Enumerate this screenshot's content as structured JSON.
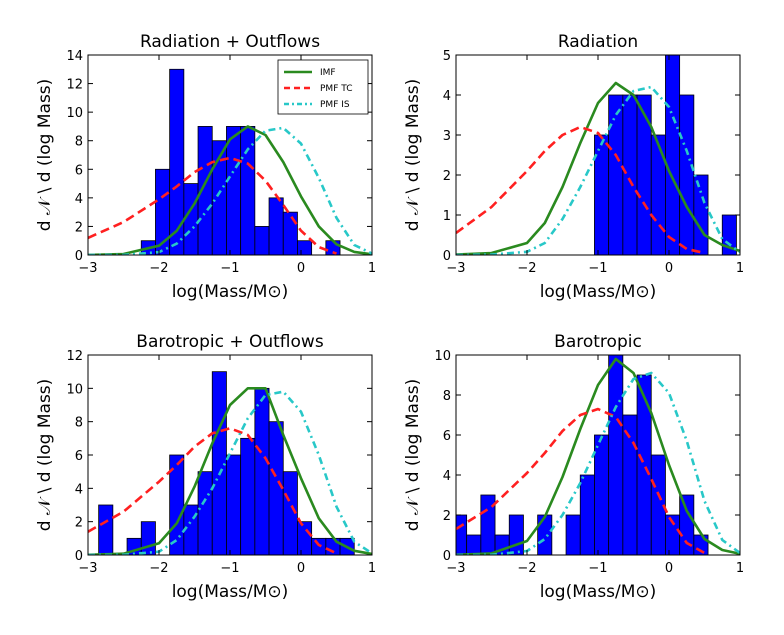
{
  "figure": {
    "xlabel": "log(Mass/M⊙)",
    "ylabel": "d 𝒩 \\ d (log Mass)"
  },
  "legend": {
    "placement": "top-right of first panel",
    "entries": [
      {
        "label": "IMF",
        "color": "#2a8a1f",
        "style": "solid"
      },
      {
        "label": "PMF TC",
        "color": "#ff2020",
        "style": "dashed"
      },
      {
        "label": "PMF IS",
        "color": "#28c8c8",
        "style": "dash-dot"
      }
    ]
  },
  "colors": {
    "bars": "#0000ff",
    "bar_edge": "#000000",
    "imf": "#2a8a1f",
    "pmf_tc": "#ff2020",
    "pmf_is": "#28c8c8"
  },
  "chart_data": [
    {
      "type": "bar",
      "title": "Radiation + Outflows",
      "xlabel": "log(Mass/M⊙)",
      "ylabel": "d 𝒩 \\ d (log Mass)",
      "xlim": [
        -3,
        1
      ],
      "ylim": [
        0,
        14
      ],
      "xticks": [
        -3,
        -2,
        -1,
        0,
        1
      ],
      "yticks": [
        0,
        2,
        4,
        6,
        8,
        10,
        12,
        14
      ],
      "grid": false,
      "histogram": {
        "bin_edges": [
          -2.25,
          -2.05,
          -1.85,
          -1.65,
          -1.45,
          -1.25,
          -1.05,
          -0.85,
          -0.65,
          -0.45,
          -0.25,
          -0.05,
          0.15,
          0.35,
          0.55
        ],
        "values": [
          1,
          6,
          13,
          5,
          9,
          8,
          9,
          9,
          2,
          4,
          3,
          1,
          0,
          1
        ]
      },
      "series": [
        {
          "name": "IMF",
          "x": [
            -3,
            -2.5,
            -2,
            -1.75,
            -1.5,
            -1.25,
            -1,
            -0.75,
            -0.5,
            -0.25,
            0,
            0.25,
            0.5,
            0.75,
            1
          ],
          "y": [
            0.01,
            0.07,
            0.65,
            1.7,
            3.6,
            6.0,
            8.1,
            9.0,
            8.4,
            6.5,
            4.1,
            2.0,
            0.75,
            0.22,
            0.05
          ]
        },
        {
          "name": "PMF TC",
          "x": [
            -3,
            -2.5,
            -2,
            -1.75,
            -1.5,
            -1.25,
            -1,
            -0.75,
            -0.5,
            -0.25,
            0,
            0.25,
            0.5
          ],
          "y": [
            1.2,
            2.3,
            3.9,
            4.8,
            5.8,
            6.5,
            6.8,
            6.4,
            5.2,
            3.5,
            1.7,
            0.55,
            0.1
          ]
        },
        {
          "name": "PMF IS",
          "x": [
            -3,
            -2.5,
            -2,
            -1.75,
            -1.5,
            -1.25,
            -1,
            -0.75,
            -0.5,
            -0.25,
            0,
            0.25,
            0.5,
            0.75,
            1
          ],
          "y": [
            0.0,
            0.01,
            0.2,
            0.8,
            2.0,
            3.6,
            5.5,
            7.4,
            8.7,
            8.9,
            7.8,
            5.4,
            2.6,
            0.7,
            0.1
          ]
        }
      ]
    },
    {
      "type": "bar",
      "title": "Radiation",
      "xlabel": "log(Mass/M⊙)",
      "ylabel": "d 𝒩 \\ d (log Mass)",
      "xlim": [
        -3,
        1
      ],
      "ylim": [
        0,
        5
      ],
      "xticks": [
        -3,
        -2,
        -1,
        0,
        1
      ],
      "yticks": [
        0,
        1,
        2,
        3,
        4,
        5
      ],
      "grid": false,
      "histogram": {
        "bin_edges": [
          -1.05,
          -0.85,
          -0.65,
          -0.45,
          -0.25,
          -0.05,
          0.15,
          0.35,
          0.55,
          0.75,
          0.95
        ],
        "values": [
          3,
          4,
          4,
          4,
          3,
          5,
          4,
          2,
          0,
          1
        ]
      },
      "series": [
        {
          "name": "IMF",
          "x": [
            -3,
            -2.5,
            -2,
            -1.75,
            -1.5,
            -1.25,
            -1,
            -0.75,
            -0.5,
            -0.25,
            0,
            0.25,
            0.5,
            0.75,
            1
          ],
          "y": [
            0.01,
            0.05,
            0.3,
            0.8,
            1.7,
            2.8,
            3.8,
            4.3,
            4.0,
            3.2,
            2.1,
            1.2,
            0.5,
            0.25,
            0.1
          ]
        },
        {
          "name": "PMF TC",
          "x": [
            -3,
            -2.5,
            -2,
            -1.75,
            -1.5,
            -1.25,
            -1,
            -0.75,
            -0.5,
            -0.25,
            0,
            0.25,
            0.5
          ],
          "y": [
            0.55,
            1.2,
            2.1,
            2.6,
            3.0,
            3.2,
            3.05,
            2.5,
            1.7,
            1.0,
            0.45,
            0.15,
            0.05
          ]
        },
        {
          "name": "PMF IS",
          "x": [
            -3,
            -2.5,
            -2,
            -1.75,
            -1.5,
            -1.25,
            -1,
            -0.75,
            -0.5,
            -0.25,
            0,
            0.25,
            0.5,
            0.75,
            1
          ],
          "y": [
            0.0,
            0.01,
            0.08,
            0.3,
            0.9,
            1.7,
            2.6,
            3.5,
            4.1,
            4.2,
            3.7,
            2.6,
            1.3,
            0.4,
            0.07
          ]
        }
      ]
    },
    {
      "type": "bar",
      "title": "Barotropic + Outflows",
      "xlabel": "log(Mass/M⊙)",
      "ylabel": "d 𝒩 \\ d (log Mass)",
      "xlim": [
        -3,
        1
      ],
      "ylim": [
        0,
        12
      ],
      "xticks": [
        -3,
        -2,
        -1,
        0,
        1
      ],
      "yticks": [
        0,
        2,
        4,
        6,
        8,
        10,
        12
      ],
      "grid": false,
      "histogram": {
        "bin_edges": [
          -2.85,
          -2.65,
          -2.45,
          -2.25,
          -2.05,
          -1.85,
          -1.65,
          -1.45,
          -1.25,
          -1.05,
          -0.85,
          -0.65,
          -0.45,
          -0.25,
          -0.05,
          0.15,
          0.35,
          0.55,
          0.75
        ],
        "values": [
          3,
          0,
          1,
          2,
          0,
          6,
          3,
          5,
          11,
          6,
          7,
          10,
          8,
          5,
          2,
          1,
          1,
          1
        ]
      },
      "series": [
        {
          "name": "IMF",
          "x": [
            -3,
            -2.5,
            -2,
            -1.75,
            -1.5,
            -1.25,
            -1,
            -0.75,
            -0.5,
            -0.25,
            0,
            0.25,
            0.5,
            0.75,
            1
          ],
          "y": [
            0.01,
            0.08,
            0.7,
            1.9,
            4.1,
            6.7,
            9.0,
            10.0,
            10.0,
            7.2,
            4.6,
            2.2,
            0.8,
            0.25,
            0.06
          ]
        },
        {
          "name": "PMF TC",
          "x": [
            -3,
            -2.5,
            -2,
            -1.75,
            -1.5,
            -1.25,
            -1,
            -0.75,
            -0.5,
            -0.25,
            0,
            0.25,
            0.5
          ],
          "y": [
            1.4,
            2.6,
            4.4,
            5.4,
            6.5,
            7.3,
            7.6,
            7.2,
            5.8,
            3.9,
            1.9,
            0.6,
            0.1
          ]
        },
        {
          "name": "PMF IS",
          "x": [
            -3,
            -2.5,
            -2,
            -1.75,
            -1.5,
            -1.25,
            -1,
            -0.75,
            -0.5,
            -0.25,
            0,
            0.25,
            0.5,
            0.75,
            1
          ],
          "y": [
            0.0,
            0.01,
            0.2,
            0.9,
            2.3,
            4.0,
            6.1,
            8.2,
            9.6,
            9.8,
            8.6,
            6.0,
            2.9,
            0.8,
            0.1
          ]
        }
      ]
    },
    {
      "type": "bar",
      "title": "Barotropic",
      "xlabel": "log(Mass/M⊙)",
      "ylabel": "d 𝒩 \\ d (log Mass)",
      "xlim": [
        -3,
        1
      ],
      "ylim": [
        0,
        10
      ],
      "xticks": [
        -3,
        -2,
        -1,
        0,
        1
      ],
      "yticks": [
        0,
        2,
        4,
        6,
        8,
        10
      ],
      "grid": false,
      "histogram": {
        "bin_edges": [
          -3.05,
          -2.85,
          -2.65,
          -2.45,
          -2.25,
          -2.05,
          -1.85,
          -1.65,
          -1.45,
          -1.25,
          -1.05,
          -0.85,
          -0.65,
          -0.45,
          -0.25,
          -0.05,
          0.15,
          0.35,
          0.55,
          0.75
        ],
        "values": [
          2,
          1,
          3,
          1,
          2,
          0,
          2,
          0,
          2,
          4,
          6,
          10,
          7,
          9,
          5,
          2,
          3,
          1,
          0
        ]
      },
      "series": [
        {
          "name": "IMF",
          "x": [
            -3,
            -2.5,
            -2,
            -1.75,
            -1.5,
            -1.25,
            -1,
            -0.75,
            -0.5,
            -0.25,
            0,
            0.25,
            0.5,
            0.75,
            1
          ],
          "y": [
            0.01,
            0.08,
            0.7,
            1.9,
            3.9,
            6.3,
            8.5,
            9.8,
            9.1,
            7.1,
            4.5,
            2.2,
            0.8,
            0.25,
            0.06
          ]
        },
        {
          "name": "PMF TC",
          "x": [
            -3,
            -2.5,
            -2,
            -1.75,
            -1.5,
            -1.25,
            -1,
            -0.75,
            -0.5,
            -0.25,
            0,
            0.25,
            0.5
          ],
          "y": [
            1.3,
            2.4,
            4.1,
            5.1,
            6.2,
            7.0,
            7.3,
            6.9,
            5.6,
            3.8,
            1.9,
            0.6,
            0.1
          ]
        },
        {
          "name": "PMF IS",
          "x": [
            -3,
            -2.5,
            -2,
            -1.75,
            -1.5,
            -1.25,
            -1,
            -0.75,
            -0.5,
            -0.25,
            0,
            0.25,
            0.5,
            0.75,
            1
          ],
          "y": [
            0.0,
            0.01,
            0.2,
            0.8,
            2.0,
            3.6,
            5.5,
            7.4,
            8.8,
            9.1,
            8.1,
            5.7,
            2.7,
            0.75,
            0.1
          ]
        }
      ]
    }
  ]
}
